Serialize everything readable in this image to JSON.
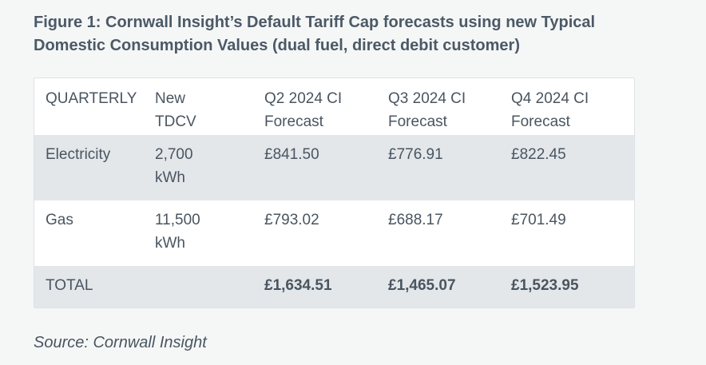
{
  "figure": {
    "title": "Figure 1: Cornwall Insight’s Default Tariff Cap forecasts using new Typical Domestic Consumption Values (dual fuel, direct debit customer)"
  },
  "table": {
    "headers": [
      {
        "line1": "QUARTERLY",
        "line2": ""
      },
      {
        "line1": "New",
        "line2": "TDCV"
      },
      {
        "line1": "Q2 2024 CI",
        "line2": "Forecast"
      },
      {
        "line1": "Q3 2024 CI",
        "line2": "Forecast"
      },
      {
        "line1": "Q4 2024 CI",
        "line2": "Forecast"
      }
    ],
    "rows": [
      {
        "label": "Electricity",
        "tdcv_line1": "2,700",
        "tdcv_line2": "kWh",
        "q2": "£841.50",
        "q3": "£776.91",
        "q4": "£822.45"
      },
      {
        "label": "Gas",
        "tdcv_line1": "11,500",
        "tdcv_line2": "kWh",
        "q2": "£793.02",
        "q3": "£688.17",
        "q4": "£701.49"
      }
    ],
    "total": {
      "label": "TOTAL",
      "tdcv": "",
      "q2": "£1,634.51",
      "q3": "£1,465.07",
      "q4": "£1,523.95"
    }
  },
  "source": "Source: Cornwall Insight",
  "colors": {
    "background": "#f5f7f7",
    "shaded_row": "#e3e7ea",
    "text": "#4a5560"
  }
}
